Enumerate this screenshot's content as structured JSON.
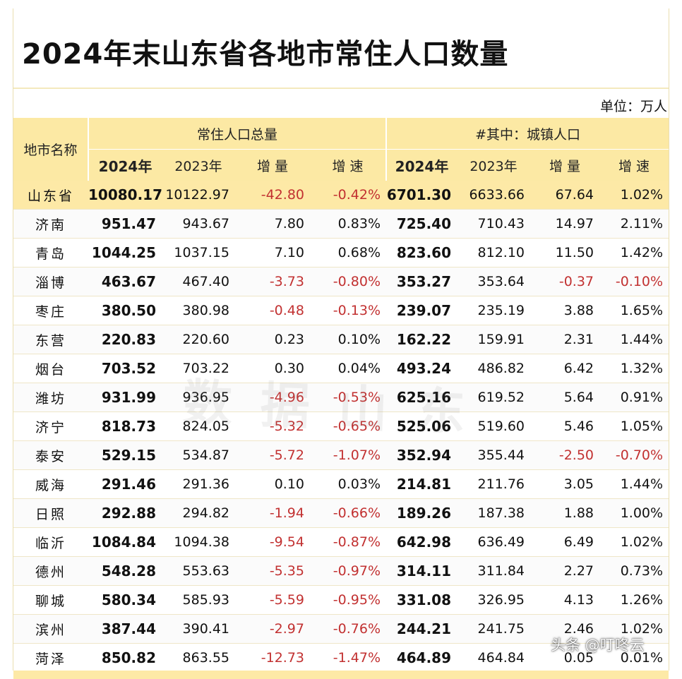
{
  "title": "2024年末山东省各地市常住人口数量",
  "unit": "单位：万人",
  "headers": {
    "city": "地市名称",
    "total_group": "常住人口总量",
    "urban_group": "#其中：城镇人口",
    "y2024": "2024年",
    "y2023": "2023年",
    "increase": "增 量",
    "rate": "增 速"
  },
  "province": {
    "name": "山东省",
    "t2024": "10080.17",
    "t2023": "10122.97",
    "tinc": "-42.80",
    "trate": "-0.42%",
    "u2024": "6701.30",
    "u2023": "6633.66",
    "uinc": "67.64",
    "urate": "1.02%"
  },
  "rows": [
    {
      "name": "济南",
      "t2024": "951.47",
      "t2023": "943.67",
      "tinc": "7.80",
      "trate": "0.83%",
      "u2024": "725.40",
      "u2023": "710.43",
      "uinc": "14.97",
      "urate": "2.11%"
    },
    {
      "name": "青岛",
      "t2024": "1044.25",
      "t2023": "1037.15",
      "tinc": "7.10",
      "trate": "0.68%",
      "u2024": "823.60",
      "u2023": "812.10",
      "uinc": "11.50",
      "urate": "1.42%"
    },
    {
      "name": "淄博",
      "t2024": "463.67",
      "t2023": "467.40",
      "tinc": "-3.73",
      "trate": "-0.80%",
      "u2024": "353.27",
      "u2023": "353.64",
      "uinc": "-0.37",
      "urate": "-0.10%"
    },
    {
      "name": "枣庄",
      "t2024": "380.50",
      "t2023": "380.98",
      "tinc": "-0.48",
      "trate": "-0.13%",
      "u2024": "239.07",
      "u2023": "235.19",
      "uinc": "3.88",
      "urate": "1.65%"
    },
    {
      "name": "东营",
      "t2024": "220.83",
      "t2023": "220.60",
      "tinc": "0.23",
      "trate": "0.10%",
      "u2024": "162.22",
      "u2023": "159.91",
      "uinc": "2.31",
      "urate": "1.44%"
    },
    {
      "name": "烟台",
      "t2024": "703.52",
      "t2023": "703.22",
      "tinc": "0.30",
      "trate": "0.04%",
      "u2024": "493.24",
      "u2023": "486.82",
      "uinc": "6.42",
      "urate": "1.32%"
    },
    {
      "name": "潍坊",
      "t2024": "931.99",
      "t2023": "936.95",
      "tinc": "-4.96",
      "trate": "-0.53%",
      "u2024": "625.16",
      "u2023": "619.52",
      "uinc": "5.64",
      "urate": "0.91%"
    },
    {
      "name": "济宁",
      "t2024": "818.73",
      "t2023": "824.05",
      "tinc": "-5.32",
      "trate": "-0.65%",
      "u2024": "525.06",
      "u2023": "519.60",
      "uinc": "5.46",
      "urate": "1.05%"
    },
    {
      "name": "泰安",
      "t2024": "529.15",
      "t2023": "534.87",
      "tinc": "-5.72",
      "trate": "-1.07%",
      "u2024": "352.94",
      "u2023": "355.44",
      "uinc": "-2.50",
      "urate": "-0.70%"
    },
    {
      "name": "威海",
      "t2024": "291.46",
      "t2023": "291.36",
      "tinc": "0.10",
      "trate": "0.03%",
      "u2024": "214.81",
      "u2023": "211.76",
      "uinc": "3.05",
      "urate": "1.44%"
    },
    {
      "name": "日照",
      "t2024": "292.88",
      "t2023": "294.82",
      "tinc": "-1.94",
      "trate": "-0.66%",
      "u2024": "189.26",
      "u2023": "187.38",
      "uinc": "1.88",
      "urate": "1.00%"
    },
    {
      "name": "临沂",
      "t2024": "1084.84",
      "t2023": "1094.38",
      "tinc": "-9.54",
      "trate": "-0.87%",
      "u2024": "642.98",
      "u2023": "636.49",
      "uinc": "6.49",
      "urate": "1.02%"
    },
    {
      "name": "德州",
      "t2024": "548.28",
      "t2023": "553.63",
      "tinc": "-5.35",
      "trate": "-0.97%",
      "u2024": "314.11",
      "u2023": "311.84",
      "uinc": "2.27",
      "urate": "0.73%"
    },
    {
      "name": "聊城",
      "t2024": "580.34",
      "t2023": "585.93",
      "tinc": "-5.59",
      "trate": "-0.95%",
      "u2024": "331.08",
      "u2023": "326.95",
      "uinc": "4.13",
      "urate": "1.26%"
    },
    {
      "name": "滨州",
      "t2024": "387.44",
      "t2023": "390.41",
      "tinc": "-2.97",
      "trate": "-0.76%",
      "u2024": "244.21",
      "u2023": "241.75",
      "uinc": "2.46",
      "urate": "1.02%"
    },
    {
      "name": "菏泽",
      "t2024": "850.82",
      "t2023": "863.55",
      "tinc": "-12.73",
      "trate": "-1.47%",
      "u2024": "464.89",
      "u2023": "464.84",
      "uinc": "0.05",
      "urate": "0.01%"
    }
  ],
  "watermark": "头条 @叮咚云",
  "colors": {
    "header_bg": "#fce9a4",
    "negative": "#c23131"
  }
}
